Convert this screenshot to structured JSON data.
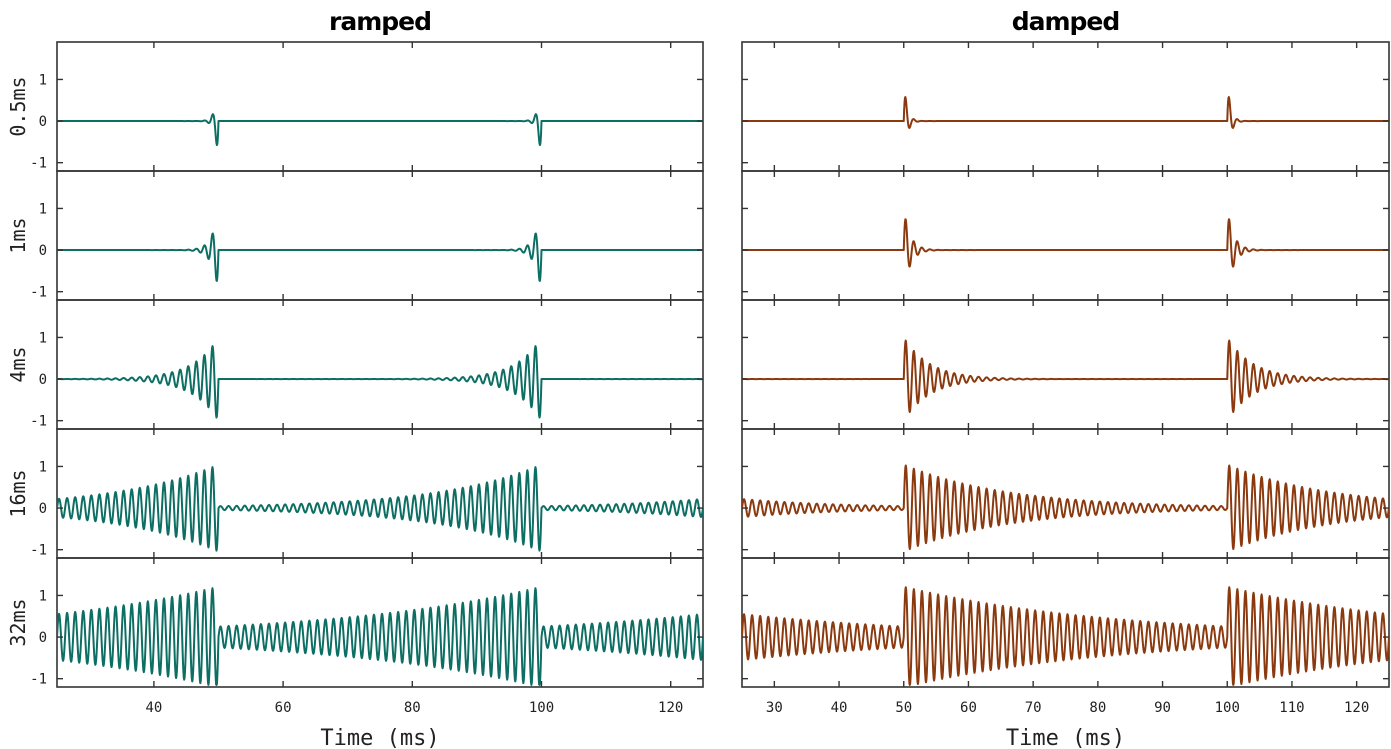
{
  "chart_data": {
    "type": "line",
    "columns": [
      {
        "title": "ramped",
        "color": "#0d6e63",
        "envelope": "ramped",
        "xlim": [
          25,
          125
        ],
        "xticks": [
          40,
          60,
          80,
          100,
          120
        ]
      },
      {
        "title": "damped",
        "color": "#8b3a0f",
        "envelope": "damped",
        "xlim": [
          25,
          125
        ],
        "xticks": [
          30,
          40,
          50,
          60,
          70,
          80,
          90,
          100,
          110,
          120
        ]
      }
    ],
    "rows": [
      {
        "label": "0.5ms",
        "tau_ms": 0.5
      },
      {
        "label": "1ms",
        "tau_ms": 1
      },
      {
        "label": "4ms",
        "tau_ms": 4
      },
      {
        "label": "16ms",
        "tau_ms": 16
      },
      {
        "label": "32ms",
        "tau_ms": 32
      }
    ],
    "ylim": [
      -1.2,
      1.9
    ],
    "yticks": [
      -1,
      0,
      1
    ],
    "period_ms": 50,
    "xlabel": "Time (ms)",
    "ylabel": ""
  }
}
